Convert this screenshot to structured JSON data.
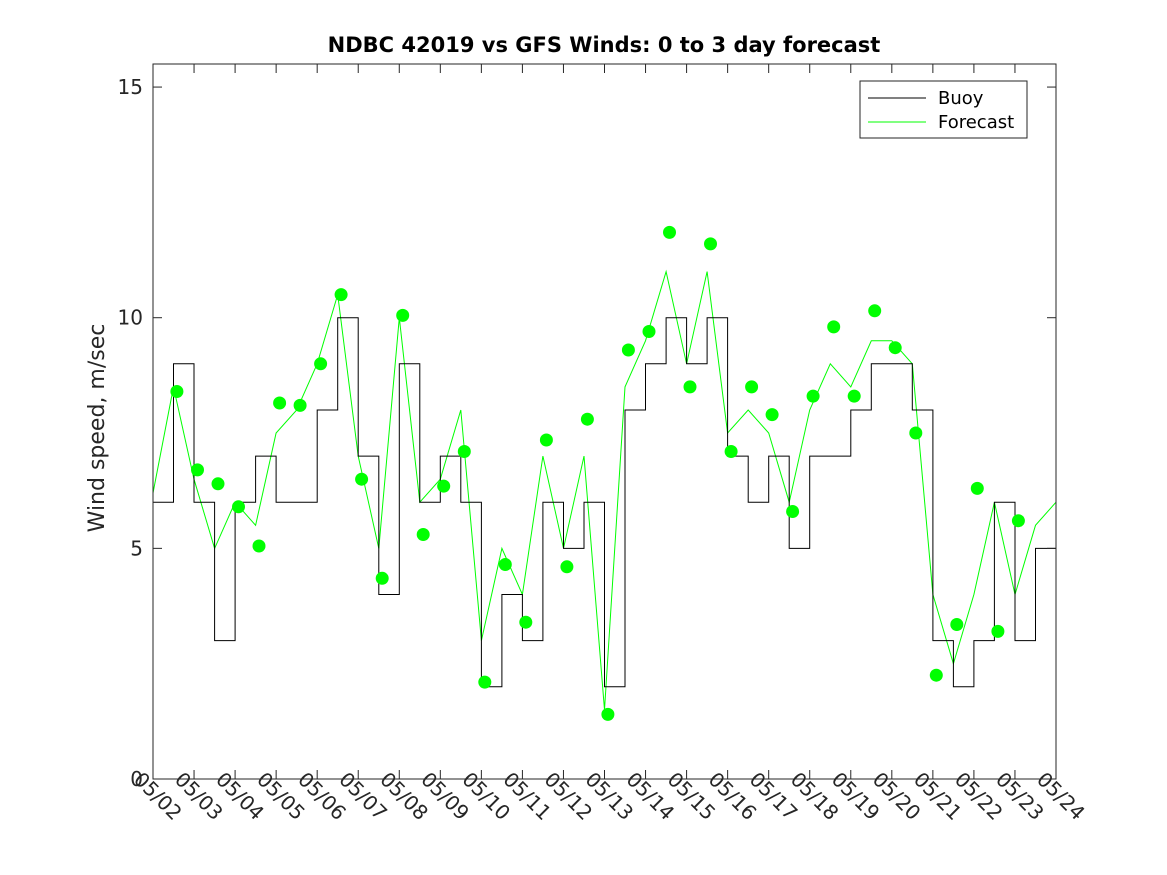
{
  "chart_data": {
    "type": "line",
    "title": "NDBC 42019 vs GFS Winds: 0 to 3 day forecast",
    "xlabel": "",
    "ylabel": "Wind speed, m/sec",
    "xlim": [
      "05/02",
      "05/24"
    ],
    "ylim": [
      0,
      15.5
    ],
    "yticks": [
      0,
      5,
      10,
      15
    ],
    "x_tick_labels": [
      "05/02",
      "05/03",
      "05/04",
      "05/05",
      "05/06",
      "05/07",
      "05/08",
      "05/09",
      "05/10",
      "05/11",
      "05/12",
      "05/13",
      "05/14",
      "05/15",
      "05/16",
      "05/17",
      "05/18",
      "05/19",
      "05/20",
      "05/21",
      "05/22",
      "05/23",
      "05/24"
    ],
    "grid": false,
    "legend": {
      "position": "top-right",
      "entries": [
        "Buoy",
        "Forecast"
      ]
    },
    "colors": {
      "buoy": "#000000",
      "forecast": "#00ff00"
    },
    "series": [
      {
        "name": "Buoy",
        "x": [
          "05/02",
          "05/02 12:00",
          "05/03",
          "05/03 12:00",
          "05/04",
          "05/04 12:00",
          "05/05",
          "05/05 12:00",
          "05/06",
          "05/06 12:00",
          "05/07",
          "05/07 12:00",
          "05/08",
          "05/08 12:00",
          "05/09",
          "05/09 12:00",
          "05/10",
          "05/10 12:00",
          "05/11",
          "05/11 12:00",
          "05/12",
          "05/12 12:00",
          "05/13",
          "05/13 12:00",
          "05/14",
          "05/14 12:00",
          "05/15",
          "05/15 12:00",
          "05/16",
          "05/16 12:00",
          "05/17",
          "05/17 12:00",
          "05/18",
          "05/18 12:00",
          "05/19",
          "05/19 12:00",
          "05/20",
          "05/20 12:00",
          "05/21",
          "05/21 12:00",
          "05/22",
          "05/22 12:00",
          "05/23",
          "05/23 12:00",
          "05/24"
        ],
        "values": [
          6,
          9,
          6,
          3,
          6,
          7,
          6,
          6,
          8,
          10,
          7,
          4,
          9,
          6,
          7,
          6,
          2,
          4,
          3,
          6,
          5,
          6,
          2,
          8,
          9,
          10,
          9,
          10,
          7,
          6,
          7,
          5,
          7,
          7,
          8,
          9,
          9,
          8,
          3,
          2,
          3,
          6,
          3,
          5,
          5
        ]
      },
      {
        "name": "Forecast",
        "x": [
          "05/02",
          "05/02 12:00",
          "05/03",
          "05/03 12:00",
          "05/04",
          "05/04 12:00",
          "05/05",
          "05/05 12:00",
          "05/06",
          "05/06 12:00",
          "05/07",
          "05/07 12:00",
          "05/08",
          "05/08 12:00",
          "05/09",
          "05/09 12:00",
          "05/10",
          "05/10 12:00",
          "05/11",
          "05/11 12:00",
          "05/12",
          "05/12 12:00",
          "05/13",
          "05/13 12:00",
          "05/14",
          "05/14 12:00",
          "05/15",
          "05/15 12:00",
          "05/16",
          "05/16 12:00",
          "05/17",
          "05/17 12:00",
          "05/18",
          "05/18 12:00",
          "05/19",
          "05/19 12:00",
          "05/20",
          "05/20 12:00",
          "05/21",
          "05/21 12:00",
          "05/22",
          "05/22 12:00",
          "05/23",
          "05/23 12:00",
          "05/24"
        ],
        "values": [
          6.2,
          8.5,
          6.5,
          5,
          6,
          5.5,
          7.5,
          8,
          9,
          10.5,
          7,
          5,
          10,
          6,
          6.5,
          8,
          3,
          5,
          4,
          7,
          5,
          7,
          1.5,
          8.5,
          9.5,
          11,
          9,
          11,
          7.5,
          8,
          7.5,
          6,
          8,
          9,
          8.5,
          9.5,
          9.5,
          9,
          4,
          2.5,
          4,
          6,
          4,
          5.5,
          6
        ]
      },
      {
        "name": "",
        "type": "scatter",
        "x": [
          "05/02 14:00",
          "05/03 02:00",
          "05/03 14:00",
          "05/04 02:00",
          "05/04 14:00",
          "05/05 02:00",
          "05/05 14:00",
          "05/06 02:00",
          "05/06 14:00",
          "05/07 02:00",
          "05/07 14:00",
          "05/08 02:00",
          "05/08 14:00",
          "05/09 02:00",
          "05/09 14:00",
          "05/10 02:00",
          "05/10 14:00",
          "05/11 02:00",
          "05/11 14:00",
          "05/12 02:00",
          "05/12 14:00",
          "05/13 02:00",
          "05/13 14:00",
          "05/14 02:00",
          "05/14 14:00",
          "05/15 02:00",
          "05/15 14:00",
          "05/16 02:00",
          "05/16 14:00",
          "05/17 02:00",
          "05/17 14:00",
          "05/18 02:00",
          "05/18 14:00",
          "05/19 02:00",
          "05/19 14:00",
          "05/20 02:00",
          "05/20 14:00",
          "05/21 02:00",
          "05/21 14:00",
          "05/22 02:00",
          "05/22 14:00",
          "05/23 02:00"
        ],
        "values": [
          8.4,
          6.7,
          6.4,
          5.9,
          5.05,
          8.15,
          8.1,
          9.0,
          10.5,
          6.5,
          4.35,
          10.05,
          5.3,
          6.35,
          7.1,
          2.1,
          4.65,
          3.4,
          7.35,
          4.6,
          7.8,
          1.4,
          9.3,
          9.7,
          11.85,
          8.5,
          11.6,
          7.1,
          8.5,
          7.9,
          5.8,
          8.3,
          9.8,
          8.3,
          10.15,
          9.35,
          7.5,
          2.25,
          3.35,
          6.3,
          3.2,
          5.6
        ]
      }
    ]
  }
}
